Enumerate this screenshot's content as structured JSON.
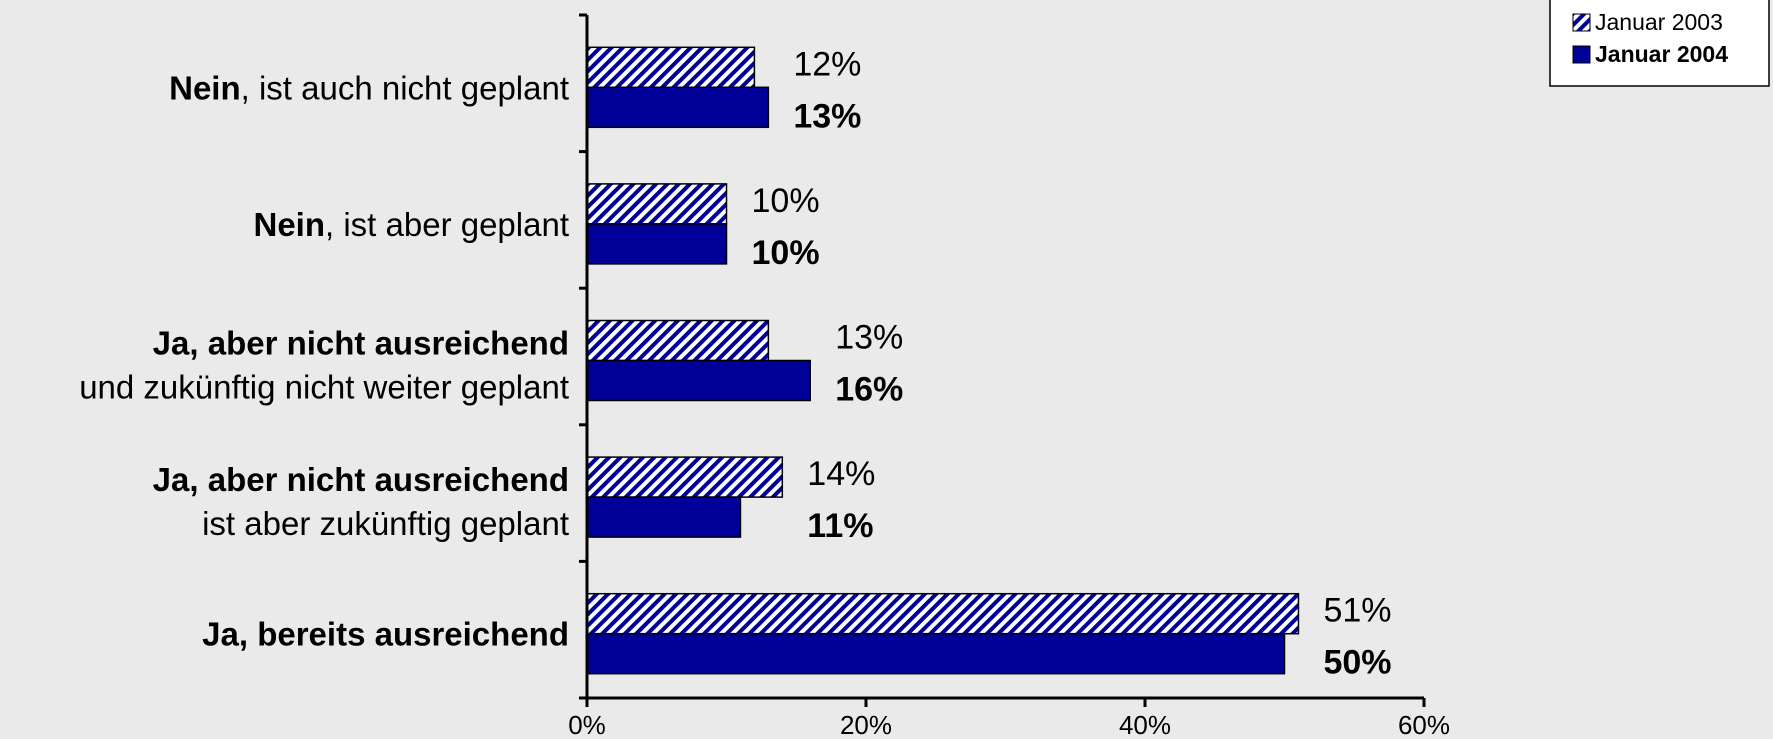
{
  "chart_data": {
    "type": "bar",
    "orientation": "horizontal",
    "categories": [
      {
        "bold": "Nein",
        "rest": ", ist auch nicht geplant",
        "line2": ""
      },
      {
        "bold": "Nein",
        "rest": ", ist aber geplant",
        "line2": ""
      },
      {
        "bold": "Ja, aber nicht ausreichend",
        "rest": "",
        "line2": "und zukünftig nicht weiter geplant"
      },
      {
        "bold": "Ja, aber nicht ausreichend",
        "rest": "",
        "line2": "ist aber zukünftig geplant"
      },
      {
        "bold": "Ja, bereits ausreichend",
        "rest": "",
        "line2": ""
      }
    ],
    "series": [
      {
        "name": "Januar 2003",
        "values": [
          12,
          10,
          13,
          14,
          51
        ],
        "pattern": "hatched",
        "color": "#000099",
        "label_bold": false
      },
      {
        "name": "Januar 2004",
        "values": [
          13,
          10,
          16,
          11,
          50
        ],
        "pattern": "solid",
        "color": "#000099",
        "label_bold": true
      }
    ],
    "value_suffix": "%",
    "xlim": [
      0,
      60
    ],
    "xticks": [
      0,
      20,
      40,
      60
    ],
    "xtick_labels": [
      "0%",
      "20%",
      "40%",
      "60%"
    ],
    "grid": false,
    "legend_position": "top-right",
    "background": "#eaeaea"
  }
}
